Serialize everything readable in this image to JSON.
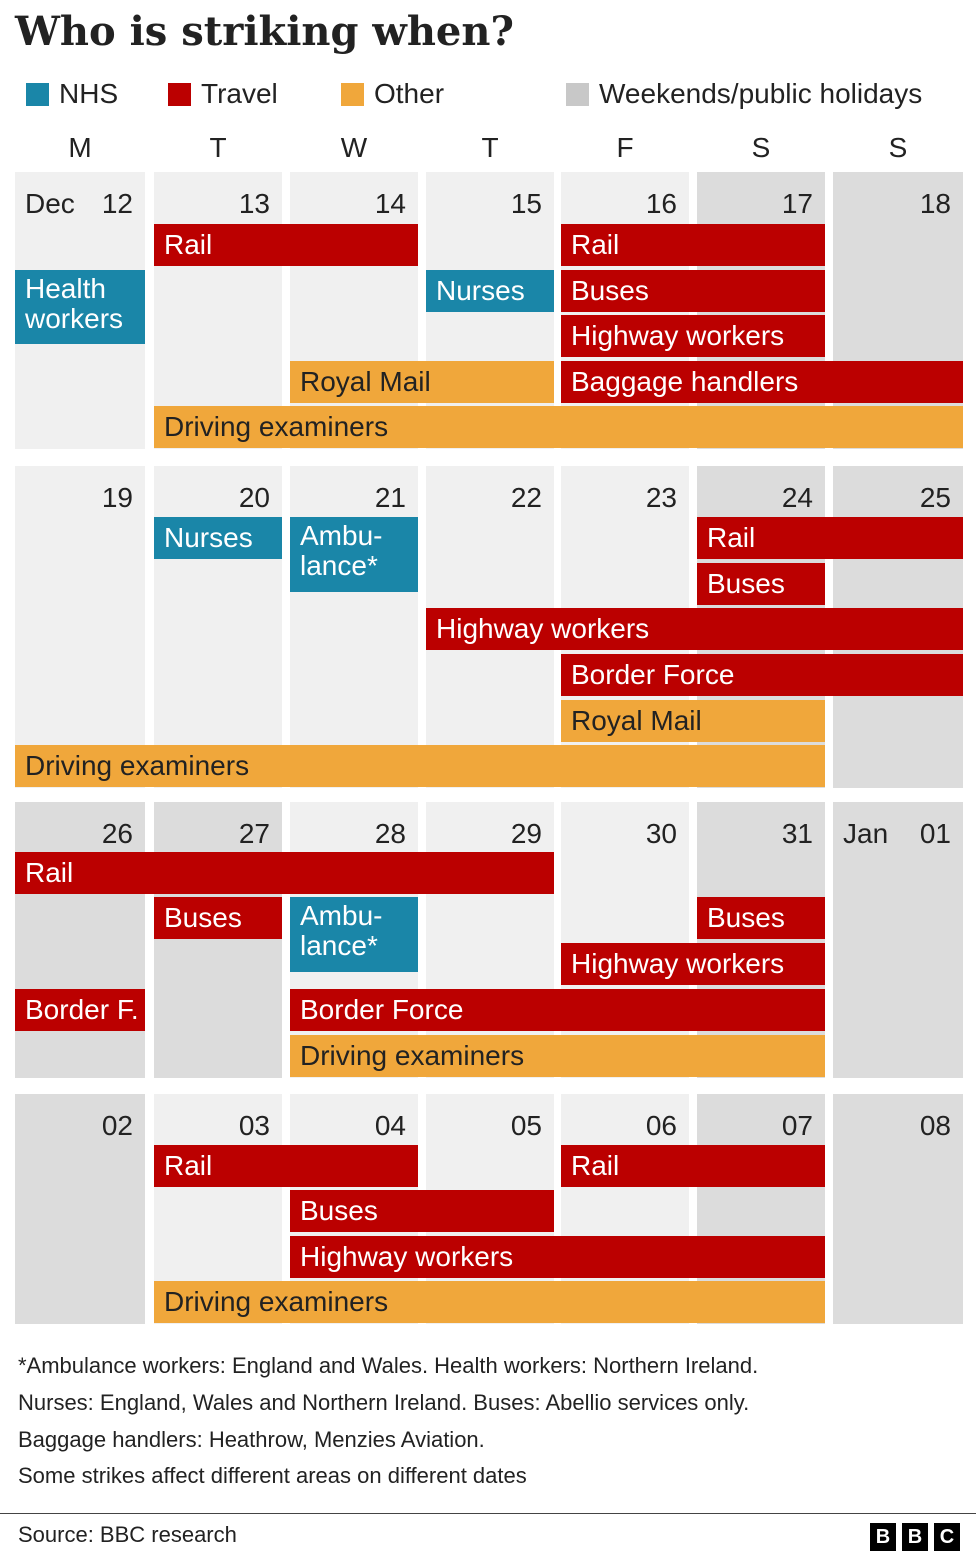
{
  "colors": {
    "NHS": "#1a86a8",
    "Travel": "#bb0000",
    "Other": "#f0a73b",
    "Weekends/public holidays": "#c8c8c8",
    "weekday_bg": "#f0f0f0",
    "weekend_bg": "#dcdcdc"
  },
  "chart_data": {
    "type": "table",
    "title": "Who is striking when?",
    "legend": [
      {
        "label": "NHS",
        "category": "NHS"
      },
      {
        "label": "Travel",
        "category": "Travel"
      },
      {
        "label": "Other",
        "category": "Other"
      },
      {
        "label": "Weekends/public holidays",
        "category": "Weekends/public holidays"
      }
    ],
    "weekdays": [
      "M",
      "T",
      "W",
      "T",
      "F",
      "S",
      "S"
    ],
    "weeks": [
      {
        "days": [
          {
            "label": "12",
            "month": "Dec",
            "type": "weekday"
          },
          {
            "label": "13",
            "type": "weekday"
          },
          {
            "label": "14",
            "type": "weekday"
          },
          {
            "label": "15",
            "type": "weekday"
          },
          {
            "label": "16",
            "type": "weekday"
          },
          {
            "label": "17",
            "type": "weekend"
          },
          {
            "label": "18",
            "type": "weekend"
          }
        ],
        "strikes": [
          {
            "label": "Rail",
            "category": "Travel",
            "start_day": 1,
            "end_day": 2,
            "lane": 0
          },
          {
            "label": "Rail",
            "category": "Travel",
            "start_day": 4,
            "end_day": 5,
            "lane": 0
          },
          {
            "label": "Health workers",
            "category": "NHS",
            "start_day": 0,
            "end_day": 0,
            "lane": 1,
            "lanes_tall": 2
          },
          {
            "label": "Nurses",
            "category": "NHS",
            "start_day": 3,
            "end_day": 3,
            "lane": 1
          },
          {
            "label": "Buses",
            "category": "Travel",
            "start_day": 4,
            "end_day": 5,
            "lane": 1
          },
          {
            "label": "Highway workers",
            "category": "Travel",
            "start_day": 4,
            "end_day": 5,
            "lane": 2
          },
          {
            "label": "Royal Mail",
            "category": "Other",
            "start_day": 2,
            "end_day": 3,
            "lane": 3
          },
          {
            "label": "Baggage handlers",
            "category": "Travel",
            "start_day": 4,
            "end_day": 6,
            "lane": 3
          },
          {
            "label": "Driving examiners",
            "category": "Other",
            "start_day": 1,
            "end_day": 6,
            "lane": 4
          }
        ]
      },
      {
        "days": [
          {
            "label": "19",
            "type": "weekday"
          },
          {
            "label": "20",
            "type": "weekday"
          },
          {
            "label": "21",
            "type": "weekday"
          },
          {
            "label": "22",
            "type": "weekday"
          },
          {
            "label": "23",
            "type": "weekday"
          },
          {
            "label": "24",
            "type": "weekend"
          },
          {
            "label": "25",
            "type": "weekend"
          }
        ],
        "strikes": [
          {
            "label": "Nurses",
            "category": "NHS",
            "start_day": 1,
            "end_day": 1,
            "lane": 0
          },
          {
            "label": "Ambu-lance*",
            "category": "NHS",
            "start_day": 2,
            "end_day": 2,
            "lane": 0,
            "lanes_tall": 2
          },
          {
            "label": "Rail",
            "category": "Travel",
            "start_day": 5,
            "end_day": 6,
            "lane": 0
          },
          {
            "label": "Buses",
            "category": "Travel",
            "start_day": 5,
            "end_day": 5,
            "lane": 1
          },
          {
            "label": "Highway workers",
            "category": "Travel",
            "start_day": 3,
            "end_day": 6,
            "lane": 2
          },
          {
            "label": "Border Force",
            "category": "Travel",
            "start_day": 4,
            "end_day": 6,
            "lane": 3
          },
          {
            "label": "Royal Mail",
            "category": "Other",
            "start_day": 4,
            "end_day": 5,
            "lane": 4
          },
          {
            "label": "Driving examiners",
            "category": "Other",
            "start_day": 0,
            "end_day": 5,
            "lane": 5
          }
        ]
      },
      {
        "days": [
          {
            "label": "26",
            "type": "weekend"
          },
          {
            "label": "27",
            "type": "weekend"
          },
          {
            "label": "28",
            "type": "weekday"
          },
          {
            "label": "29",
            "type": "weekday"
          },
          {
            "label": "30",
            "type": "weekday"
          },
          {
            "label": "31",
            "type": "weekend"
          },
          {
            "label": "01",
            "month": "Jan",
            "type": "weekend"
          }
        ],
        "strikes": [
          {
            "label": "Rail",
            "category": "Travel",
            "start_day": 0,
            "end_day": 3,
            "lane": 0
          },
          {
            "label": "Buses",
            "category": "Travel",
            "start_day": 1,
            "end_day": 1,
            "lane": 1
          },
          {
            "label": "Ambu-lance*",
            "category": "NHS",
            "start_day": 2,
            "end_day": 2,
            "lane": 1,
            "lanes_tall": 2
          },
          {
            "label": "Buses",
            "category": "Travel",
            "start_day": 5,
            "end_day": 5,
            "lane": 1
          },
          {
            "label": "Highway workers",
            "category": "Travel",
            "start_day": 4,
            "end_day": 5,
            "lane": 2
          },
          {
            "label": "Border F.",
            "category": "Travel",
            "start_day": 0,
            "end_day": 0,
            "lane": 3
          },
          {
            "label": "Border Force",
            "category": "Travel",
            "start_day": 2,
            "end_day": 5,
            "lane": 3
          },
          {
            "label": "Driving examiners",
            "category": "Other",
            "start_day": 2,
            "end_day": 5,
            "lane": 4
          }
        ]
      },
      {
        "days": [
          {
            "label": "02",
            "type": "weekend"
          },
          {
            "label": "03",
            "type": "weekday"
          },
          {
            "label": "04",
            "type": "weekday"
          },
          {
            "label": "05",
            "type": "weekday"
          },
          {
            "label": "06",
            "type": "weekday"
          },
          {
            "label": "07",
            "type": "weekend"
          },
          {
            "label": "08",
            "type": "weekend"
          }
        ],
        "strikes": [
          {
            "label": "Rail",
            "category": "Travel",
            "start_day": 1,
            "end_day": 2,
            "lane": 0
          },
          {
            "label": "Rail",
            "category": "Travel",
            "start_day": 4,
            "end_day": 5,
            "lane": 0
          },
          {
            "label": "Buses",
            "category": "Travel",
            "start_day": 2,
            "end_day": 3,
            "lane": 1
          },
          {
            "label": "Highway workers",
            "category": "Travel",
            "start_day": 2,
            "end_day": 5,
            "lane": 2
          },
          {
            "label": "Driving examiners",
            "category": "Other",
            "start_day": 1,
            "end_day": 5,
            "lane": 3
          }
        ]
      }
    ]
  },
  "footnotes": [
    "*Ambulance workers: England and Wales. Health workers: Northern Ireland.",
    "Nurses: England, Wales and Northern Ireland. Buses: Abellio services only.",
    "Baggage handlers: Heathrow, Menzies Aviation.",
    "Some strikes affect different areas on different dates"
  ],
  "source": "Source: BBC research",
  "logo_letters": [
    "B",
    "B",
    "C"
  ]
}
